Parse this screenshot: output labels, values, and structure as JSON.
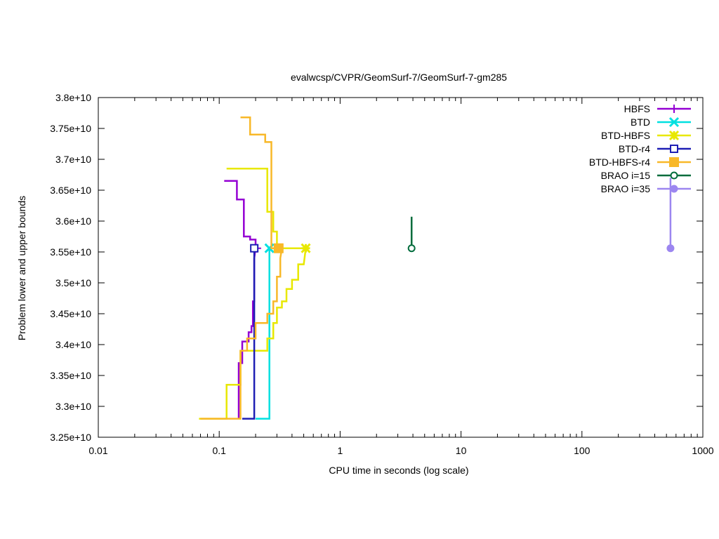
{
  "chart_data": {
    "type": "line",
    "title": "evalwcsp/CVPR/GeomSurf-7/GeomSurf-7-gm285",
    "xlabel": "CPU time in seconds (log scale)",
    "ylabel": "Problem lower and upper bounds",
    "x_scale": "log",
    "xlim": [
      0.01,
      1000
    ],
    "ylim": [
      32500000000.0,
      38000000000.0
    ],
    "x_ticks": [
      0.01,
      0.1,
      1,
      10,
      100,
      1000
    ],
    "x_tick_labels": [
      "0.01",
      "0.1",
      "1",
      "10",
      "100",
      "1000"
    ],
    "y_ticks": [
      32500000000.0,
      33000000000.0,
      33500000000.0,
      34000000000.0,
      34500000000.0,
      35000000000.0,
      35500000000.0,
      36000000000.0,
      36500000000.0,
      37000000000.0,
      37500000000.0,
      38000000000.0
    ],
    "y_tick_labels": [
      "3.25e+10",
      "3.3e+10",
      "3.35e+10",
      "3.4e+10",
      "3.45e+10",
      "3.5e+10",
      "3.55e+10",
      "3.6e+10",
      "3.65e+10",
      "3.7e+10",
      "3.75e+10",
      "3.8e+10"
    ],
    "legend_position": "top-right",
    "grid": false,
    "series": [
      {
        "name": "HBFS",
        "color": "#9400d3",
        "marker": "plus",
        "upper": [
          [
            0.11,
            36650000000.0
          ],
          [
            0.14,
            36650000000.0
          ],
          [
            0.14,
            36350000000.0
          ],
          [
            0.16,
            36350000000.0
          ],
          [
            0.16,
            35750000000.0
          ],
          [
            0.18,
            35750000000.0
          ],
          [
            0.18,
            35700000000.0
          ],
          [
            0.2,
            35700000000.0
          ],
          [
            0.2,
            35560000000.0
          ]
        ],
        "lower": [
          [
            0.145,
            32800000000.0
          ],
          [
            0.145,
            33700000000.0
          ],
          [
            0.155,
            33700000000.0
          ],
          [
            0.155,
            34050000000.0
          ],
          [
            0.175,
            34050000000.0
          ],
          [
            0.175,
            34200000000.0
          ],
          [
            0.185,
            34200000000.0
          ],
          [
            0.185,
            34300000000.0
          ],
          [
            0.19,
            34300000000.0
          ],
          [
            0.19,
            34700000000.0
          ],
          [
            0.195,
            34700000000.0
          ],
          [
            0.195,
            35400000000.0
          ],
          [
            0.2,
            35560000000.0
          ]
        ],
        "end": [
          0.205,
          35560000000.0
        ]
      },
      {
        "name": "BTD",
        "color": "#00e0e0",
        "marker": "cross",
        "upper": [],
        "lower": [
          [
            0.2,
            32800000000.0
          ],
          [
            0.26,
            32800000000.0
          ],
          [
            0.26,
            35560000000.0
          ]
        ],
        "end": [
          0.26,
          35560000000.0
        ]
      },
      {
        "name": "BTD-HBFS",
        "color": "#e8e800",
        "marker": "star",
        "upper": [
          [
            0.115,
            36850000000.0
          ],
          [
            0.25,
            36850000000.0
          ],
          [
            0.25,
            36150000000.0
          ],
          [
            0.28,
            36150000000.0
          ],
          [
            0.28,
            35830000000.0
          ],
          [
            0.3,
            35830000000.0
          ],
          [
            0.3,
            35560000000.0
          ],
          [
            0.52,
            35560000000.0
          ]
        ],
        "lower": [
          [
            0.068,
            32800000000.0
          ],
          [
            0.115,
            32800000000.0
          ],
          [
            0.115,
            33350000000.0
          ],
          [
            0.15,
            33350000000.0
          ],
          [
            0.15,
            33900000000.0
          ],
          [
            0.25,
            33900000000.0
          ],
          [
            0.25,
            34100000000.0
          ],
          [
            0.28,
            34100000000.0
          ],
          [
            0.28,
            34350000000.0
          ],
          [
            0.3,
            34350000000.0
          ],
          [
            0.3,
            34600000000.0
          ],
          [
            0.33,
            34600000000.0
          ],
          [
            0.33,
            34700000000.0
          ],
          [
            0.36,
            34700000000.0
          ],
          [
            0.36,
            34900000000.0
          ],
          [
            0.4,
            34900000000.0
          ],
          [
            0.4,
            35050000000.0
          ],
          [
            0.45,
            35050000000.0
          ],
          [
            0.45,
            35300000000.0
          ],
          [
            0.5,
            35300000000.0
          ],
          [
            0.52,
            35560000000.0
          ]
        ],
        "end": [
          0.52,
          35560000000.0
        ]
      },
      {
        "name": "BTD-r4",
        "color": "#1e1eb4",
        "marker": "open-square",
        "upper": [],
        "lower": [
          [
            0.155,
            32800000000.0
          ],
          [
            0.195,
            32800000000.0
          ],
          [
            0.195,
            35560000000.0
          ]
        ],
        "end": [
          0.195,
          35560000000.0
        ]
      },
      {
        "name": "BTD-HBFS-r4",
        "color": "#f8b828",
        "marker": "filled-square",
        "upper": [
          [
            0.15,
            37680000000.0
          ],
          [
            0.18,
            37680000000.0
          ],
          [
            0.18,
            37400000000.0
          ],
          [
            0.24,
            37400000000.0
          ],
          [
            0.24,
            37280000000.0
          ],
          [
            0.27,
            37280000000.0
          ],
          [
            0.27,
            35560000000.0
          ],
          [
            0.33,
            35560000000.0
          ]
        ],
        "lower": [
          [
            0.07,
            32800000000.0
          ],
          [
            0.15,
            32800000000.0
          ],
          [
            0.15,
            33900000000.0
          ],
          [
            0.17,
            33900000000.0
          ],
          [
            0.17,
            34100000000.0
          ],
          [
            0.2,
            34100000000.0
          ],
          [
            0.2,
            34350000000.0
          ],
          [
            0.25,
            34350000000.0
          ],
          [
            0.25,
            34500000000.0
          ],
          [
            0.28,
            34500000000.0
          ],
          [
            0.28,
            34700000000.0
          ],
          [
            0.3,
            34700000000.0
          ],
          [
            0.3,
            35100000000.0
          ],
          [
            0.32,
            35100000000.0
          ],
          [
            0.32,
            35400000000.0
          ],
          [
            0.33,
            35560000000.0
          ]
        ],
        "end": [
          0.31,
          35560000000.0
        ]
      },
      {
        "name": "BRAO i=15",
        "color": "#006c3c",
        "marker": "open-circle",
        "upper": [
          [
            3.9,
            36070000000.0
          ],
          [
            3.9,
            35560000000.0
          ]
        ],
        "lower": [],
        "end": [
          3.9,
          35560000000.0
        ]
      },
      {
        "name": "BRAO i=35",
        "color": "#9c86f0",
        "marker": "filled-circle",
        "upper": [
          [
            540,
            36700000000.0
          ],
          [
            540,
            35560000000.0
          ]
        ],
        "lower": [],
        "end": [
          540,
          35560000000.0
        ]
      }
    ]
  }
}
